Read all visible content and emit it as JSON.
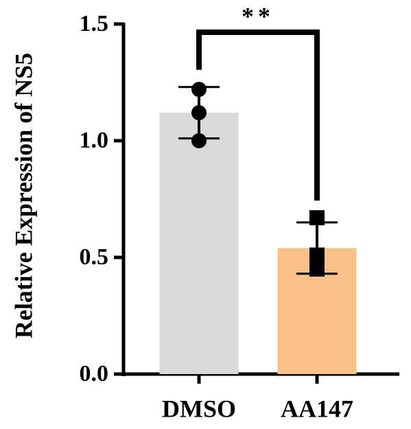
{
  "chart_data": {
    "type": "bar",
    "y_label": "Relative Expression of NS5",
    "categories": [
      "DMSO",
      "AA147"
    ],
    "values": [
      1.12,
      0.54
    ],
    "errors": [
      0.11,
      0.11
    ],
    "points": [
      [
        1.22,
        1.12,
        1.0
      ],
      [
        0.67,
        0.51,
        0.45
      ]
    ],
    "colors": [
      "#d9d9d9",
      "#f9c088"
    ],
    "markers": [
      "circle",
      "square"
    ],
    "significance": "**",
    "ylim": [
      0,
      1.5
    ],
    "yticks": [
      {
        "value": 0,
        "label": "0.0"
      },
      0.5,
      {
        "value": 1,
        "label": "1.0"
      },
      1.5
    ]
  }
}
